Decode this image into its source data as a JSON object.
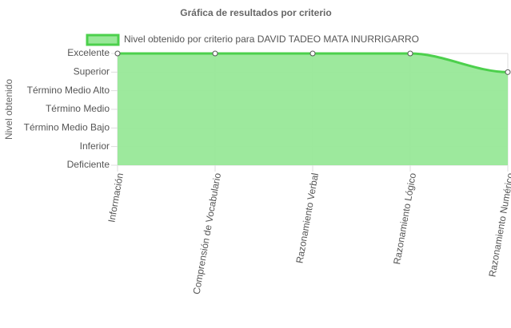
{
  "chart_data": {
    "type": "line",
    "title": "Gráfica de resultados por criterio",
    "y_label": "Nivel obtenido",
    "categories": [
      "Información",
      "Comprensión de Vocabulario",
      "Razonamiento Verbal",
      "Razonamiento Lógico",
      "Razonamiento Numérico"
    ],
    "series": [
      {
        "name": "Nivel obtenido por criterio para DAVID TADEO MATA INURRIGARRO",
        "color": "#4cd04c",
        "fill": "#98e898",
        "values": [
          6,
          6,
          6,
          6,
          5
        ]
      }
    ],
    "ylim": [
      0,
      6
    ],
    "yticks": [
      {
        "value": 6,
        "label": "Excelente"
      },
      {
        "value": 5,
        "label": "Superior"
      },
      {
        "value": 4,
        "label": "Término Medio Alto"
      },
      {
        "value": 3,
        "label": "Término Medio"
      },
      {
        "value": 2,
        "label": "Término Medio Bajo"
      },
      {
        "value": 1,
        "label": "Inferior"
      },
      {
        "value": 0,
        "label": "Deficiente"
      }
    ],
    "grid": true,
    "legend": "top"
  }
}
